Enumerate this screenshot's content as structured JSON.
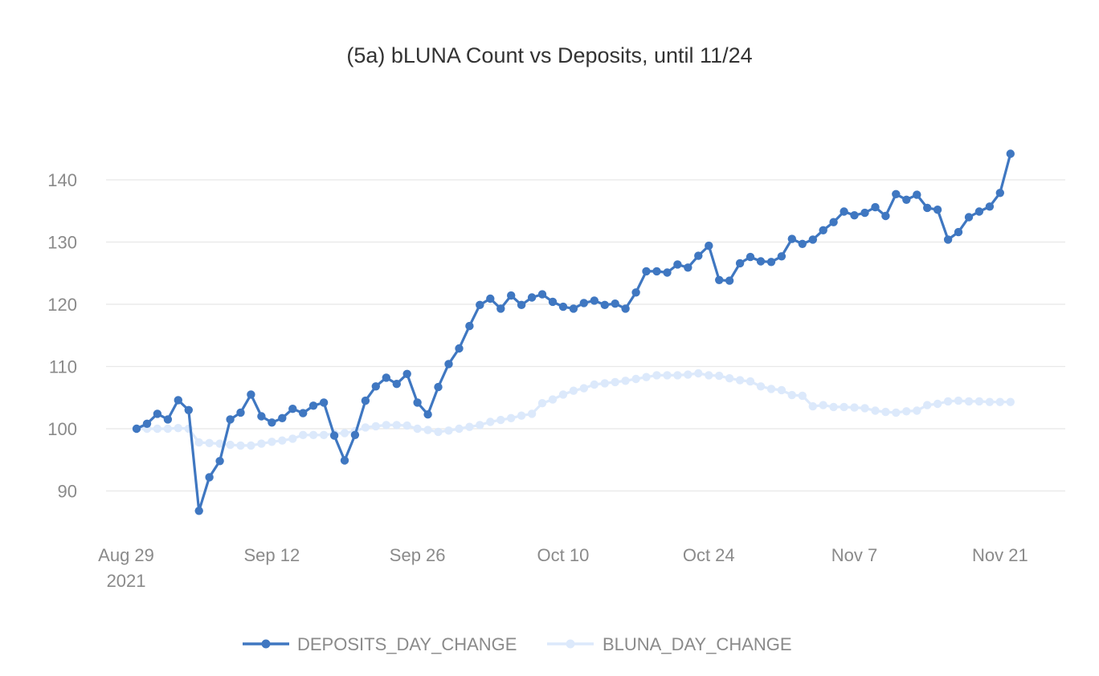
{
  "chart_data": {
    "type": "line",
    "title": "(5a) bLUNA Count vs Deposits, until 11/24",
    "xlabel": "",
    "ylabel": "",
    "x_start": "2021-08-30",
    "x_end": "2021-11-24",
    "x_domain": [
      "2021-08-29",
      "2021-11-28"
    ],
    "ylim": [
      82,
      152
    ],
    "y_ticks": [
      90,
      100,
      110,
      120,
      130,
      140
    ],
    "x_ticks": [
      {
        "date": "2021-08-29",
        "label": "Aug 29",
        "sublabel": "2021"
      },
      {
        "date": "2021-09-12",
        "label": "Sep 12",
        "sublabel": ""
      },
      {
        "date": "2021-09-26",
        "label": "Sep 26",
        "sublabel": ""
      },
      {
        "date": "2021-10-10",
        "label": "Oct 10",
        "sublabel": ""
      },
      {
        "date": "2021-10-24",
        "label": "Oct 24",
        "sublabel": ""
      },
      {
        "date": "2021-11-07",
        "label": "Nov 7",
        "sublabel": ""
      },
      {
        "date": "2021-11-21",
        "label": "Nov 21",
        "sublabel": ""
      }
    ],
    "grid": true,
    "legend_position": "bottom",
    "series": [
      {
        "name": "DEPOSITS_DAY_CHANGE",
        "color": "#3f77c1",
        "values": [
          100.0,
          100.8,
          102.4,
          101.5,
          104.6,
          103.0,
          86.8,
          92.2,
          94.8,
          101.5,
          102.6,
          105.5,
          102.0,
          101.0,
          101.7,
          103.2,
          102.5,
          103.7,
          104.2,
          98.9,
          94.9,
          99.0,
          104.5,
          106.8,
          108.2,
          107.2,
          108.8,
          104.2,
          102.3,
          106.7,
          110.4,
          112.9,
          116.5,
          119.9,
          120.9,
          119.3,
          121.4,
          119.9,
          121.1,
          121.6,
          120.4,
          119.6,
          119.3,
          120.2,
          120.6,
          119.9,
          120.1,
          119.3,
          121.9,
          125.3,
          125.3,
          125.1,
          126.4,
          125.9,
          127.8,
          129.4,
          123.9,
          123.8,
          126.6,
          127.6,
          126.9,
          126.8,
          127.7,
          130.5,
          129.7,
          130.4,
          131.9,
          133.2,
          134.9,
          134.3,
          134.7,
          135.6,
          134.2,
          137.7,
          136.8,
          137.6,
          135.5,
          135.2,
          130.4,
          131.6,
          134.0,
          134.9,
          135.7,
          137.9,
          144.2
        ]
      },
      {
        "name": "BLUNA_DAY_CHANGE",
        "color": "#dce9fb",
        "values": [
          100.0,
          100.0,
          100.0,
          100.0,
          100.1,
          100.0,
          97.8,
          97.7,
          97.6,
          97.4,
          97.3,
          97.3,
          97.6,
          97.9,
          98.1,
          98.4,
          99.0,
          99.0,
          99.0,
          99.2,
          99.3,
          99.6,
          100.2,
          100.4,
          100.6,
          100.6,
          100.5,
          100.0,
          99.8,
          99.5,
          99.7,
          100.0,
          100.3,
          100.6,
          101.1,
          101.4,
          101.7,
          102.1,
          102.4,
          104.1,
          104.7,
          105.5,
          106.1,
          106.5,
          107.1,
          107.3,
          107.5,
          107.7,
          108.0,
          108.3,
          108.6,
          108.6,
          108.6,
          108.7,
          108.9,
          108.6,
          108.5,
          108.1,
          107.8,
          107.6,
          106.8,
          106.4,
          106.2,
          105.4,
          105.3,
          103.6,
          103.8,
          103.5,
          103.5,
          103.4,
          103.3,
          102.9,
          102.7,
          102.6,
          102.8,
          102.9,
          103.8,
          104.0,
          104.4,
          104.5,
          104.4,
          104.4,
          104.3,
          104.3,
          104.3
        ]
      }
    ]
  }
}
